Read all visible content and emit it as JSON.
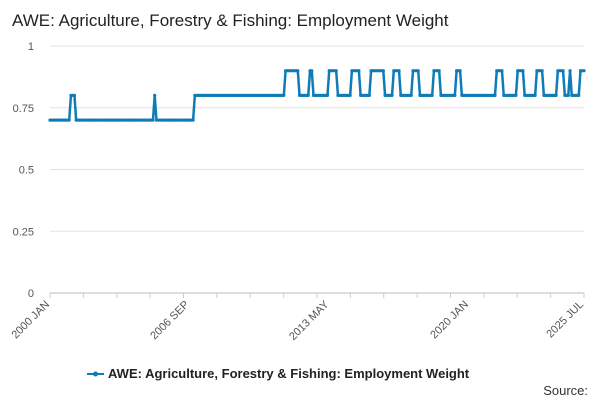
{
  "chart_data": {
    "type": "line",
    "title": "AWE: Agriculture, Forestry & Fishing: Employment Weight",
    "xlabel": "",
    "ylabel": "",
    "ylim": [
      0,
      1
    ],
    "yticks": [
      "0",
      "0.25",
      "0.5",
      "0.75",
      "1"
    ],
    "xrange": [
      "2000-01",
      "2025-07"
    ],
    "xticks": [
      {
        "label": "2000 JAN",
        "date": "2000-01"
      },
      {
        "label": "2006 SEP",
        "date": "2006-09"
      },
      {
        "label": "2013 MAY",
        "date": "2013-05"
      },
      {
        "label": "2020 JAN",
        "date": "2020-01"
      },
      {
        "label": "2025 JUL",
        "date": "2025-07"
      }
    ],
    "grid": "horizontal",
    "legend_position": "bottom",
    "series": [
      {
        "name": "AWE: Agriculture, Forestry & Fishing: Employment Weight",
        "color": "#0f7bb7",
        "baseline": [
          {
            "from": "2000-01",
            "to": "2006-12",
            "value": 0.7
          },
          {
            "from": "2007-01",
            "to": "2025-07",
            "value": 0.8
          }
        ],
        "peaks": [
          {
            "from": "2001-01",
            "to": "2001-03",
            "value": 0.8
          },
          {
            "from": "2005-01",
            "to": "2005-01",
            "value": 0.8
          },
          {
            "from": "2006-12",
            "to": "2006-12",
            "value": 0.8
          },
          {
            "from": "2011-04",
            "to": "2011-11",
            "value": 0.9
          },
          {
            "from": "2012-06",
            "to": "2012-07",
            "value": 0.9
          },
          {
            "from": "2013-05",
            "to": "2013-09",
            "value": 0.9
          },
          {
            "from": "2014-06",
            "to": "2014-10",
            "value": 0.9
          },
          {
            "from": "2015-05",
            "to": "2015-12",
            "value": 0.9
          },
          {
            "from": "2016-06",
            "to": "2016-09",
            "value": 0.9
          },
          {
            "from": "2017-05",
            "to": "2017-08",
            "value": 0.9
          },
          {
            "from": "2018-05",
            "to": "2018-08",
            "value": 0.9
          },
          {
            "from": "2019-06",
            "to": "2019-08",
            "value": 0.9
          },
          {
            "from": "2021-05",
            "to": "2021-08",
            "value": 0.9
          },
          {
            "from": "2022-05",
            "to": "2022-08",
            "value": 0.9
          },
          {
            "from": "2023-04",
            "to": "2023-07",
            "value": 0.9
          },
          {
            "from": "2024-04",
            "to": "2024-07",
            "value": 0.9
          },
          {
            "from": "2024-11",
            "to": "2024-11",
            "value": 0.9
          },
          {
            "from": "2025-05",
            "to": "2025-07",
            "value": 0.9
          }
        ]
      }
    ],
    "source_label": "Source:"
  }
}
